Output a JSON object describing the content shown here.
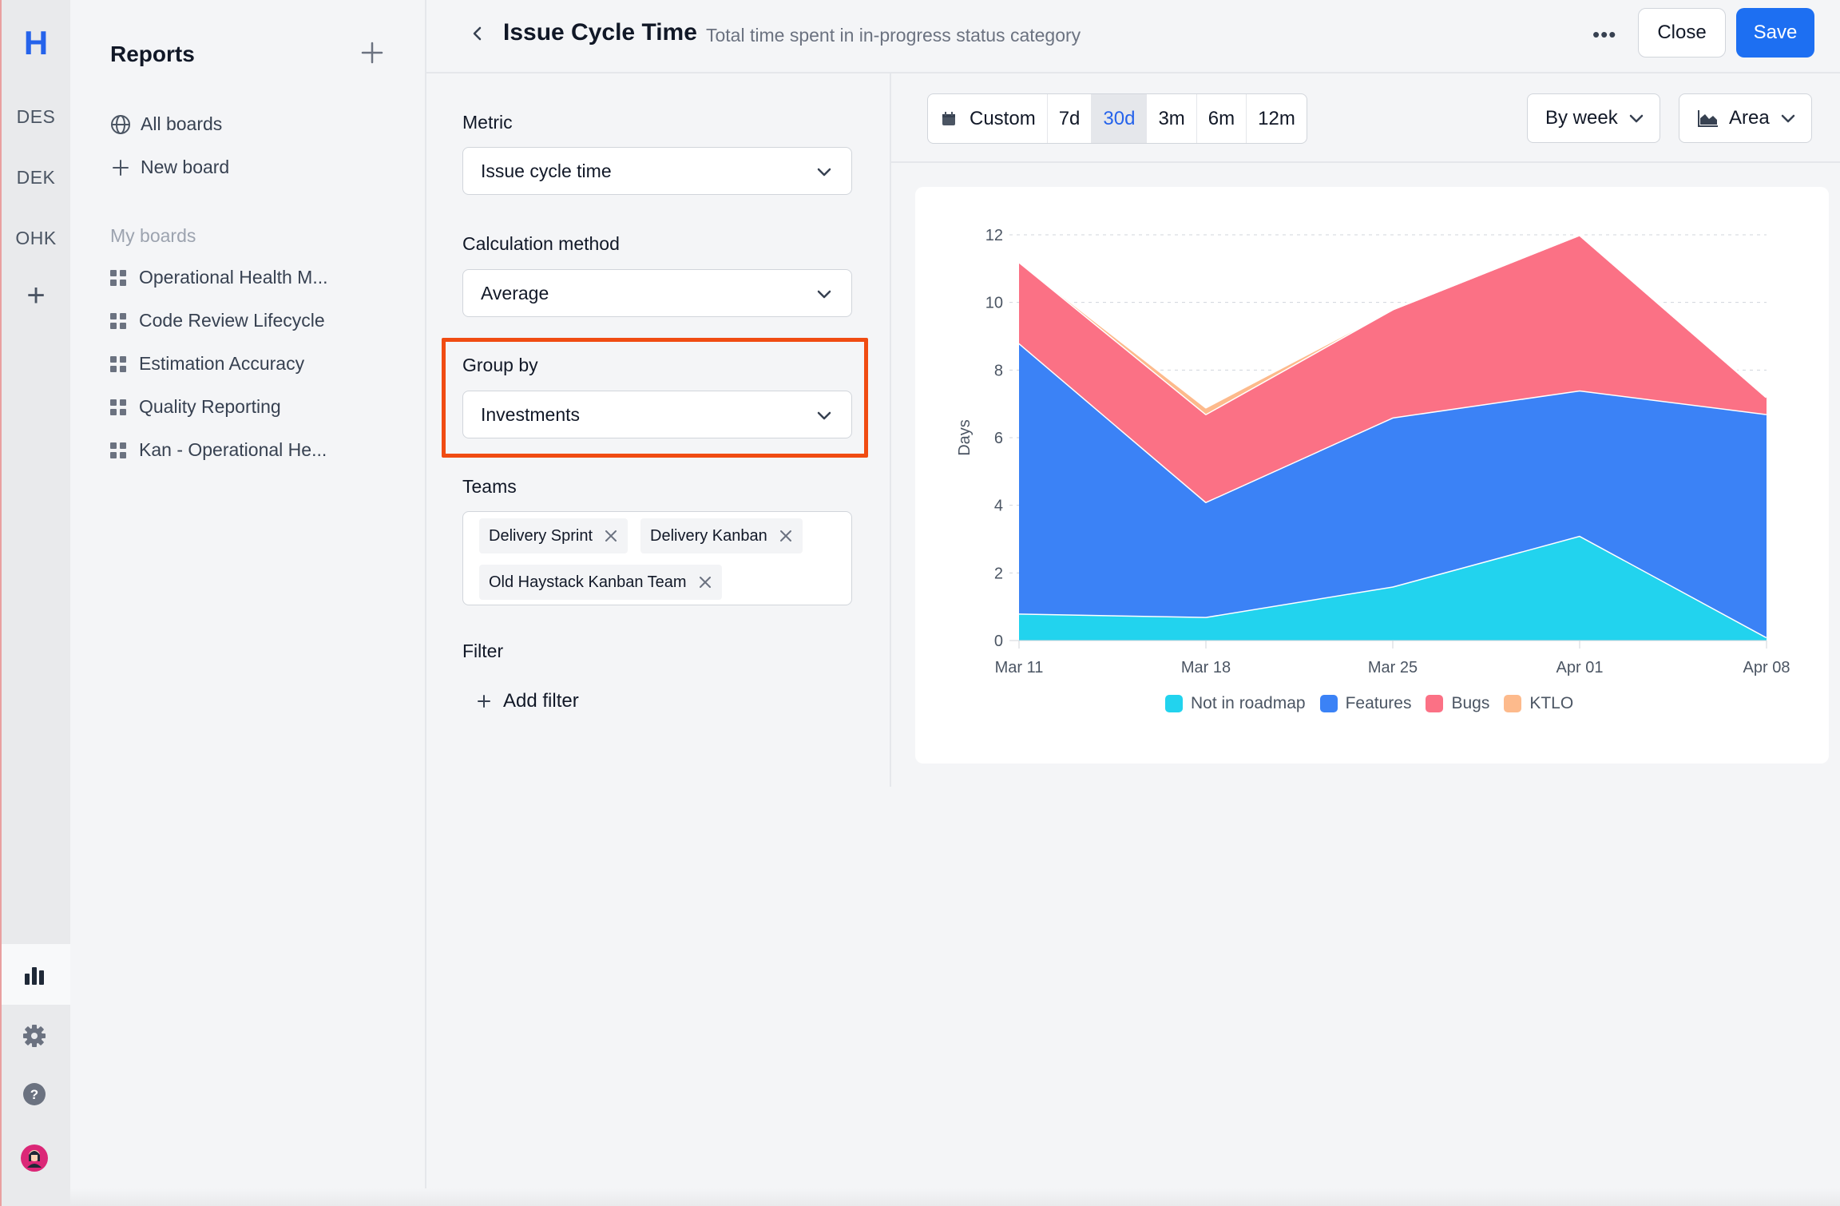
{
  "rail": {
    "logo": "H",
    "workspaces": [
      "DES",
      "DEK",
      "OHK"
    ],
    "icons": [
      "plus-icon",
      "bar-chart-icon",
      "gear-icon",
      "help-icon",
      "avatar"
    ]
  },
  "sidebar": {
    "title": "Reports",
    "links": [
      {
        "label": "All boards",
        "icon": "globe-icon"
      },
      {
        "label": "New board",
        "icon": "plus-icon"
      }
    ],
    "section_label": "My boards",
    "boards": [
      "Operational Health M...",
      "Code Review Lifecycle",
      "Estimation Accuracy",
      "Quality Reporting",
      "Kan - Operational He..."
    ]
  },
  "header": {
    "title": "Issue Cycle Time",
    "subtitle": "Total time spent in in-progress status category",
    "more": "•••",
    "close_label": "Close",
    "save_label": "Save"
  },
  "config": {
    "metric_label": "Metric",
    "metric_value": "Issue cycle time",
    "calc_label": "Calculation method",
    "calc_value": "Average",
    "group_label": "Group by",
    "group_value": "Investments",
    "teams_label": "Teams",
    "teams": [
      "Delivery Sprint",
      "Delivery Kanban",
      "Old Haystack Kanban Team"
    ],
    "filter_label": "Filter",
    "add_filter_label": "Add filter"
  },
  "toolbar": {
    "ranges": [
      "Custom",
      "7d",
      "30d",
      "3m",
      "6m",
      "12m"
    ],
    "active_range": "30d",
    "granularity": "By week",
    "chart_type": "Area"
  },
  "colors": {
    "accent": "#1d6ff2",
    "highlight": "#f04c12"
  },
  "chart_data": {
    "type": "area",
    "stacked": true,
    "x": [
      "Mar 11",
      "Mar 18",
      "Mar 25",
      "Apr 01",
      "Apr 08"
    ],
    "ylabel": "Days",
    "ylim": [
      0,
      12
    ],
    "yticks": [
      0,
      2,
      4,
      6,
      8,
      10,
      12
    ],
    "grid": true,
    "legend_position": "bottom",
    "series": [
      {
        "name": "Not in roadmap",
        "color": "#22d3ee",
        "values": [
          0.8,
          0.7,
          1.6,
          3.1,
          0.1
        ]
      },
      {
        "name": "Features",
        "color": "#3b82f6",
        "values": [
          8.0,
          3.4,
          5.0,
          4.3,
          6.6
        ]
      },
      {
        "name": "Bugs",
        "color": "#fb7185",
        "values": [
          2.4,
          2.6,
          3.2,
          4.6,
          0.5
        ]
      },
      {
        "name": "KTLO",
        "color": "#fdba8c",
        "values": [
          0.0,
          0.2,
          0.0,
          0.0,
          0.0
        ]
      }
    ]
  }
}
